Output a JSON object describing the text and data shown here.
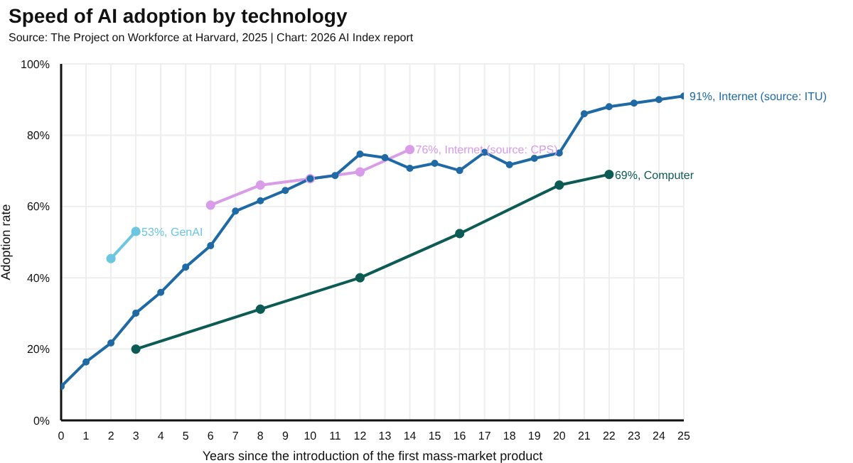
{
  "chart_data": {
    "type": "line",
    "title": "Speed of AI adoption by technology",
    "subtitle": "Source: The Project on Workforce at Harvard, 2025 | Chart: 2026 AI Index report",
    "xlabel": "Years since the introduction of the first mass-market product",
    "ylabel": "Adoption rate",
    "xlim": [
      0,
      25
    ],
    "xticks": [
      0,
      1,
      2,
      3,
      4,
      5,
      6,
      7,
      8,
      9,
      10,
      11,
      12,
      13,
      14,
      15,
      16,
      17,
      18,
      19,
      20,
      21,
      22,
      23,
      24,
      25
    ],
    "ylim": [
      0,
      100
    ],
    "yticks": [
      {
        "value": 0,
        "label": "0%"
      },
      {
        "value": 20,
        "label": "20%"
      },
      {
        "value": 40,
        "label": "40%"
      },
      {
        "value": 60,
        "label": "60%"
      },
      {
        "value": 80,
        "label": "80%"
      },
      {
        "value": 100,
        "label": "100%"
      }
    ],
    "grid": true,
    "marker": "circle",
    "line_style": "solid",
    "series": [
      {
        "name": "91%, Internet (source: ITU)",
        "color": "#1f6aa5",
        "x": [
          0,
          1,
          2,
          3,
          4,
          5,
          6,
          7,
          8,
          9,
          10,
          11,
          12,
          13,
          14,
          15,
          16,
          17,
          18,
          19,
          20,
          21,
          22,
          23,
          24,
          25
        ],
        "values": [
          9.5,
          16.4,
          21.7,
          30.1,
          35.9,
          43,
          49,
          58.7,
          61.6,
          64.5,
          67.8,
          68.7,
          74.7,
          73.7,
          70.7,
          72.1,
          70.1,
          75.2,
          71.7,
          73.5,
          75,
          86,
          88,
          89,
          90,
          91
        ]
      },
      {
        "name": "76%, Internet (source: CPS)",
        "color": "#d99ce8",
        "x": [
          6,
          8,
          10,
          12,
          14
        ],
        "values": [
          60.4,
          66,
          67.8,
          69.7,
          76
        ]
      },
      {
        "name": "53%, GenAI",
        "color": "#6cc6e0",
        "x": [
          2,
          3
        ],
        "values": [
          45.4,
          53
        ]
      },
      {
        "name": "69%, Computer",
        "color": "#0d5b55",
        "x": [
          3,
          8,
          12,
          16,
          20,
          22
        ],
        "values": [
          20,
          31.2,
          40,
          52.4,
          66,
          69
        ]
      }
    ]
  }
}
